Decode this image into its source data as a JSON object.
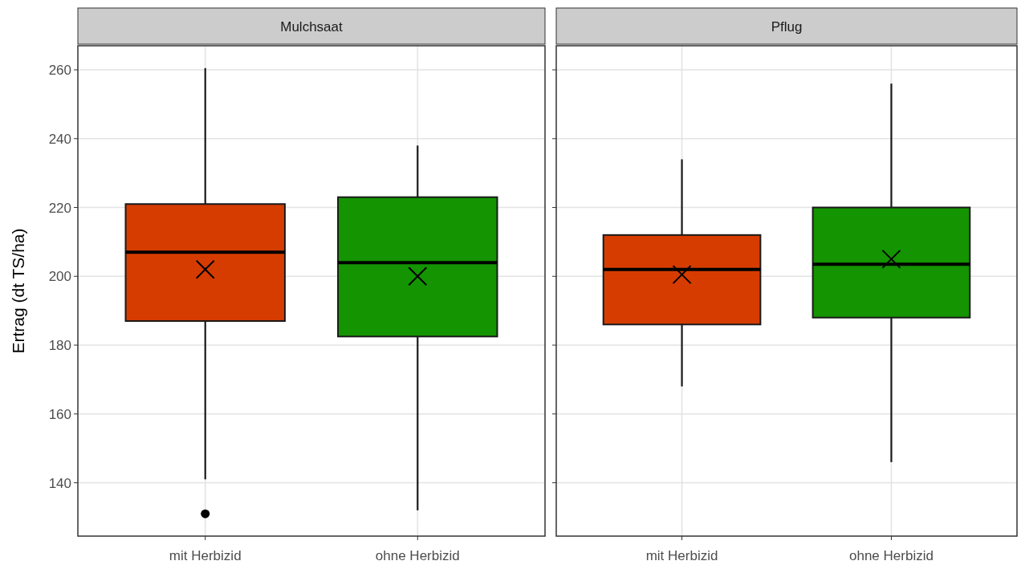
{
  "chart_data": [
    {
      "type": "box",
      "title": "Mulchsaat",
      "ylabel": "Ertrag (dt TS/ha)",
      "categories": [
        "mit Herbizid",
        "ohne Herbizid"
      ],
      "colors": [
        "#d63c00",
        "#149400"
      ],
      "boxes": [
        {
          "low": 141,
          "q1": 187,
          "median": 207,
          "q3": 221,
          "high": 260.5,
          "mean": 202,
          "outliers": [
            131
          ]
        },
        {
          "low": 132,
          "q1": 182.5,
          "median": 204,
          "q3": 223,
          "high": 238,
          "mean": 200
        }
      ],
      "ylim": [
        124.5,
        267
      ],
      "yticks": [
        140,
        160,
        180,
        200,
        220,
        240,
        260
      ],
      "grid": true
    },
    {
      "type": "box",
      "title": "Pflug",
      "categories": [
        "mit Herbizid",
        "ohne Herbizid"
      ],
      "colors": [
        "#d63c00",
        "#149400"
      ],
      "boxes": [
        {
          "low": 168,
          "q1": 186,
          "median": 202,
          "q3": 212,
          "high": 234,
          "mean": 200.5
        },
        {
          "low": 146,
          "q1": 188,
          "median": 203.5,
          "q3": 220,
          "high": 256,
          "mean": 205
        }
      ],
      "ylim": [
        124.5,
        267
      ],
      "yticks": [
        140,
        160,
        180,
        200,
        220,
        240,
        260
      ],
      "grid": true,
      "tick_labels": "x"
    }
  ]
}
